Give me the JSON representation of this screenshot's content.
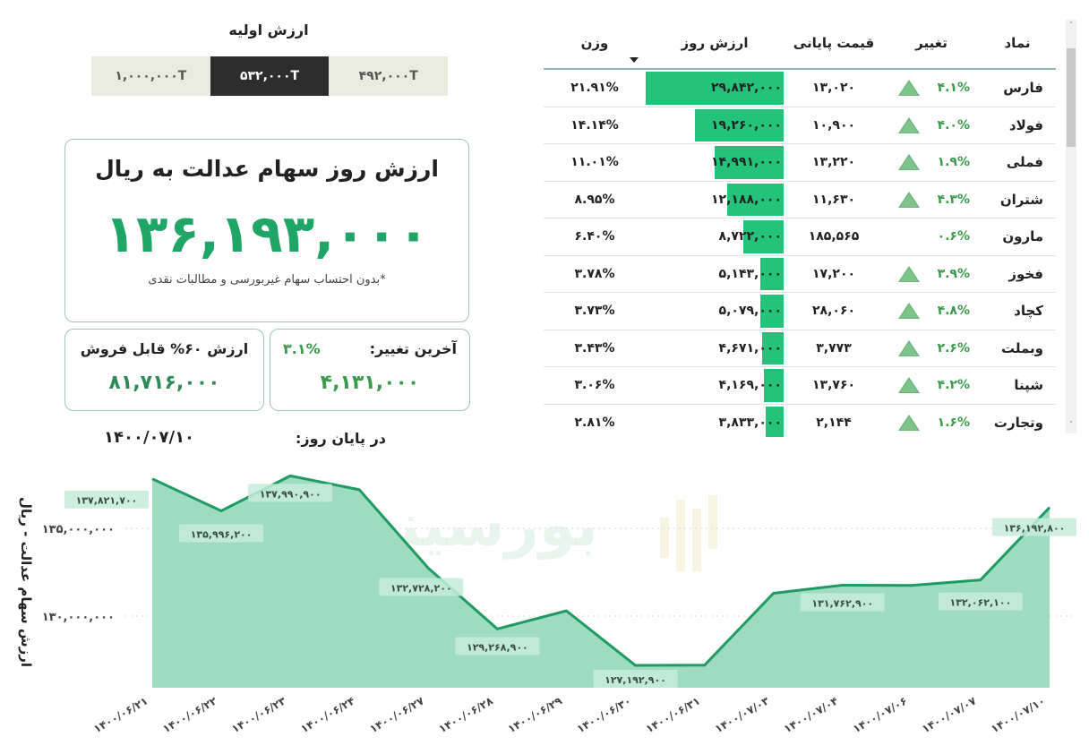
{
  "initial_value": {
    "title": "ارزش اولیه",
    "options": [
      {
        "label": "۴۹۲,۰۰۰T",
        "active": false
      },
      {
        "label": "۵۳۲,۰۰۰T",
        "active": true
      },
      {
        "label": "۱,۰۰۰,۰۰۰T",
        "active": false
      }
    ]
  },
  "main_card": {
    "title": "ارزش روز سهام عدالت به ریال",
    "value": "۱۳۶,۱۹۳,۰۰۰",
    "note": "*بدون احتساب سهام غیربورسی و مطالبات نقدی"
  },
  "last_change_card": {
    "label": "آخرین تغییر:",
    "percent": "۳.۱%",
    "value": "۴,۱۳۱,۰۰۰"
  },
  "sellable_card": {
    "label": "ارزش ۶۰% قابل فروش",
    "value": "۸۱,۷۱۶,۰۰۰"
  },
  "end_of_day": {
    "label": "در پایان روز:",
    "date": "۱۴۰۰/۰۷/۱۰"
  },
  "table": {
    "headers": {
      "symbol": "نماد",
      "change": "تغییر",
      "close_price": "قیمت پایانی",
      "day_value": "ارزش روز",
      "weight": "وزن"
    },
    "sorted_column": "day_value",
    "rows": [
      {
        "symbol": "فارس",
        "change": "۴.۱%",
        "up": true,
        "close_price": "۱۳,۰۲۰",
        "day_value": "۲۹,۸۴۲,۰۰۰",
        "bar_pct": 100,
        "weight": "۲۱.۹۱%"
      },
      {
        "symbol": "فولاد",
        "change": "۴.۰%",
        "up": true,
        "close_price": "۱۰,۹۰۰",
        "day_value": "۱۹,۲۶۰,۰۰۰",
        "bar_pct": 64.5,
        "weight": "۱۴.۱۴%"
      },
      {
        "symbol": "فملی",
        "change": "۱.۹%",
        "up": true,
        "close_price": "۱۳,۲۲۰",
        "day_value": "۱۴,۹۹۱,۰۰۰",
        "bar_pct": 50.2,
        "weight": "۱۱.۰۱%"
      },
      {
        "symbol": "شتران",
        "change": "۴.۳%",
        "up": true,
        "close_price": "۱۱,۶۳۰",
        "day_value": "۱۲,۱۸۸,۰۰۰",
        "bar_pct": 40.8,
        "weight": "۸.۹۵%"
      },
      {
        "symbol": "مارون",
        "change": "۰.۶%",
        "up": false,
        "close_price": "۱۸۵,۵۶۵",
        "day_value": "۸,۷۲۲,۰۰۰",
        "bar_pct": 29.2,
        "weight": "۶.۴۰%"
      },
      {
        "symbol": "فخوز",
        "change": "۳.۹%",
        "up": true,
        "close_price": "۱۷,۲۰۰",
        "day_value": "۵,۱۴۳,۰۰۰",
        "bar_pct": 17.2,
        "weight": "۳.۷۸%"
      },
      {
        "symbol": "کچاد",
        "change": "۴.۸%",
        "up": true,
        "close_price": "۲۸,۰۶۰",
        "day_value": "۵,۰۷۹,۰۰۰",
        "bar_pct": 17.0,
        "weight": "۳.۷۳%"
      },
      {
        "symbol": "وبملت",
        "change": "۲.۶%",
        "up": true,
        "close_price": "۳,۷۷۳",
        "day_value": "۴,۶۷۱,۰۰۰",
        "bar_pct": 15.6,
        "weight": "۳.۴۳%"
      },
      {
        "symbol": "شپنا",
        "change": "۴.۲%",
        "up": true,
        "close_price": "۱۳,۷۶۰",
        "day_value": "۴,۱۶۹,۰۰۰",
        "bar_pct": 14.0,
        "weight": "۳.۰۶%"
      },
      {
        "symbol": "وتجارت",
        "change": "۱.۶%",
        "up": true,
        "close_price": "۲,۱۴۴",
        "day_value": "۳,۸۳۳,۰۰۰",
        "bar_pct": 12.8,
        "weight": "۲.۸۱%"
      }
    ]
  },
  "watermark": "بورسینه",
  "chart_data": {
    "type": "area",
    "title": "",
    "xlabel": "",
    "ylabel": "ارزش سهام عدالت - ریال",
    "ylim": [
      126000000,
      139000000
    ],
    "y_ticks": [
      {
        "value": 130000000,
        "label": "۱۳۰,۰۰۰,۰۰۰"
      },
      {
        "value": 135000000,
        "label": "۱۳۵,۰۰۰,۰۰۰"
      }
    ],
    "grid": "dotted-horizontal",
    "categories": [
      "۱۴۰۰/۰۶/۲۱",
      "۱۴۰۰/۰۶/۲۲",
      "۱۴۰۰/۰۶/۲۳",
      "۱۴۰۰/۰۶/۲۴",
      "۱۴۰۰/۰۶/۲۷",
      "۱۴۰۰/۰۶/۲۸",
      "۱۴۰۰/۰۶/۲۹",
      "۱۴۰۰/۰۶/۳۰",
      "۱۴۰۰/۰۶/۳۱",
      "۱۴۰۰/۰۷/۰۳",
      "۱۴۰۰/۰۷/۰۴",
      "۱۴۰۰/۰۷/۰۶",
      "۱۴۰۰/۰۷/۰۷",
      "۱۴۰۰/۰۷/۱۰"
    ],
    "values": [
      137821700,
      135996200,
      137990900,
      137200000,
      132728200,
      129268900,
      130300000,
      127192900,
      127200000,
      131300000,
      131762900,
      131750000,
      132062100,
      136192800
    ],
    "data_labels": [
      {
        "index": 0,
        "label": "۱۳۷,۸۲۱,۷۰۰"
      },
      {
        "index": 1,
        "label": "۱۳۵,۹۹۶,۲۰۰"
      },
      {
        "index": 2,
        "label": "۱۳۷,۹۹۰,۹۰۰"
      },
      {
        "index": 4,
        "label": "۱۳۲,۷۲۸,۲۰۰"
      },
      {
        "index": 5,
        "label": "۱۲۹,۲۶۸,۹۰۰"
      },
      {
        "index": 7,
        "label": "۱۲۷,۱۹۲,۹۰۰"
      },
      {
        "index": 10,
        "label": "۱۳۱,۷۶۲,۹۰۰"
      },
      {
        "index": 12,
        "label": "۱۳۲,۰۶۲,۱۰۰"
      },
      {
        "index": 13,
        "label": "۱۳۶,۱۹۲,۸۰۰"
      }
    ],
    "colors": {
      "line": "#1e9a62",
      "fill": "#9edcc0",
      "label_bg": "#c6ecdb"
    }
  }
}
